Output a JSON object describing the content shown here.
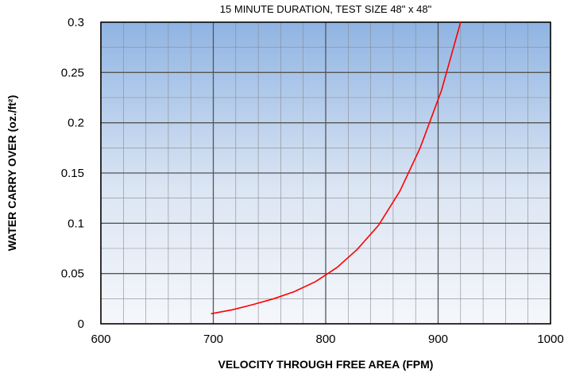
{
  "chart_data": {
    "type": "line",
    "title": "15 MINUTE DURATION, TEST SIZE 48\" x 48\"",
    "xlabel": "VELOCITY THROUGH FREE AREA (FPM)",
    "ylabel": "WATER CARRY OVER (oz./ft²)",
    "xlim": [
      600,
      1000
    ],
    "ylim": [
      0,
      0.3
    ],
    "x_ticks": [
      600,
      700,
      800,
      900,
      1000
    ],
    "x_tick_labels": [
      "600",
      "700",
      "800",
      "900",
      "1000"
    ],
    "y_ticks": [
      0,
      0.05,
      0.1,
      0.15,
      0.2,
      0.25,
      0.3
    ],
    "y_tick_labels": [
      "0",
      "0.05",
      "0.1",
      "0.15",
      "0.2",
      "0.25",
      "0.3"
    ],
    "grid": true,
    "background": "gradient",
    "series": [
      {
        "color": "#ff0000",
        "x": [
          698,
          717,
          735,
          754,
          772,
          791,
          810,
          828,
          847,
          866,
          884,
          903,
          920
        ],
        "y": [
          0.01,
          0.014,
          0.019,
          0.025,
          0.032,
          0.042,
          0.056,
          0.074,
          0.098,
          0.132,
          0.175,
          0.232,
          0.3
        ]
      }
    ]
  }
}
